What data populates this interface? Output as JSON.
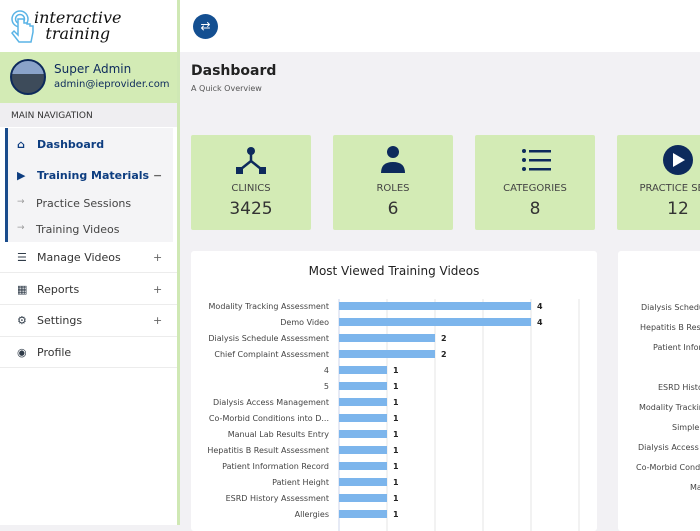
{
  "logo": {
    "line1": "interactive",
    "line2": "training"
  },
  "user": {
    "name": "Super Admin",
    "email": "admin@ieprovider.com"
  },
  "nav": {
    "heading": "MAIN NAVIGATION",
    "items": [
      {
        "label": "Dashboard",
        "icon": "home-icon"
      },
      {
        "label": "Training Materials",
        "icon": "play-circle-icon",
        "toggle": "−"
      },
      {
        "label": "Practice Sessions",
        "icon": "arrow-right-icon"
      },
      {
        "label": "Training Videos",
        "icon": "arrow-right-icon"
      },
      {
        "label": "Manage Videos",
        "icon": "sliders-icon",
        "toggle": "+"
      },
      {
        "label": "Reports",
        "icon": "bar-chart-icon",
        "toggle": "+"
      },
      {
        "label": "Settings",
        "icon": "gear-icon",
        "toggle": "+"
      },
      {
        "label": "Profile",
        "icon": "user-circle-icon"
      }
    ]
  },
  "header": {
    "title": "Dashboard",
    "subtitle": "A Quick Overview"
  },
  "cards": [
    {
      "label": "CLINICS",
      "value": "3425",
      "icon": "sitemap-icon"
    },
    {
      "label": "ROLES",
      "value": "6",
      "icon": "user-icon"
    },
    {
      "label": "CATEGORIES",
      "value": "8",
      "icon": "list-icon"
    },
    {
      "label": "PRACTICE SESS",
      "value": "12",
      "icon": "play-circle-icon"
    }
  ],
  "colors": {
    "navy": "#0d2a5c",
    "card": "#d3ebb5",
    "bar": "#7cb5ec"
  },
  "chart_data": {
    "type": "bar",
    "orientation": "horizontal",
    "title": "Most Viewed Training Videos",
    "xlim": [
      0,
      5
    ],
    "grid": true,
    "categories": [
      "Modality Tracking Assessment",
      "Demo Video",
      "Dialysis Schedule Assessment",
      "Chief Complaint Assessment",
      "4",
      "5",
      "Dialysis Access Management",
      "Co-Morbid Conditions into D...",
      "Manual Lab Results Entry",
      "Hepatitis B Result Assessment",
      "Patient Information Record",
      "Patient Height",
      "ESRD History Assessment",
      "Allergies"
    ],
    "values": [
      4,
      4,
      2,
      2,
      1,
      1,
      1,
      1,
      1,
      1,
      1,
      1,
      1,
      1
    ]
  },
  "second_chart": {
    "labels": [
      "Dialysis Schedu",
      "Hepatitis B Resu",
      "Patient Infor",
      "ESRD Histo",
      "Modality Trackin",
      "Simple",
      "Dialysis Access I",
      "Co-Morbid Cond",
      "Ma"
    ]
  }
}
